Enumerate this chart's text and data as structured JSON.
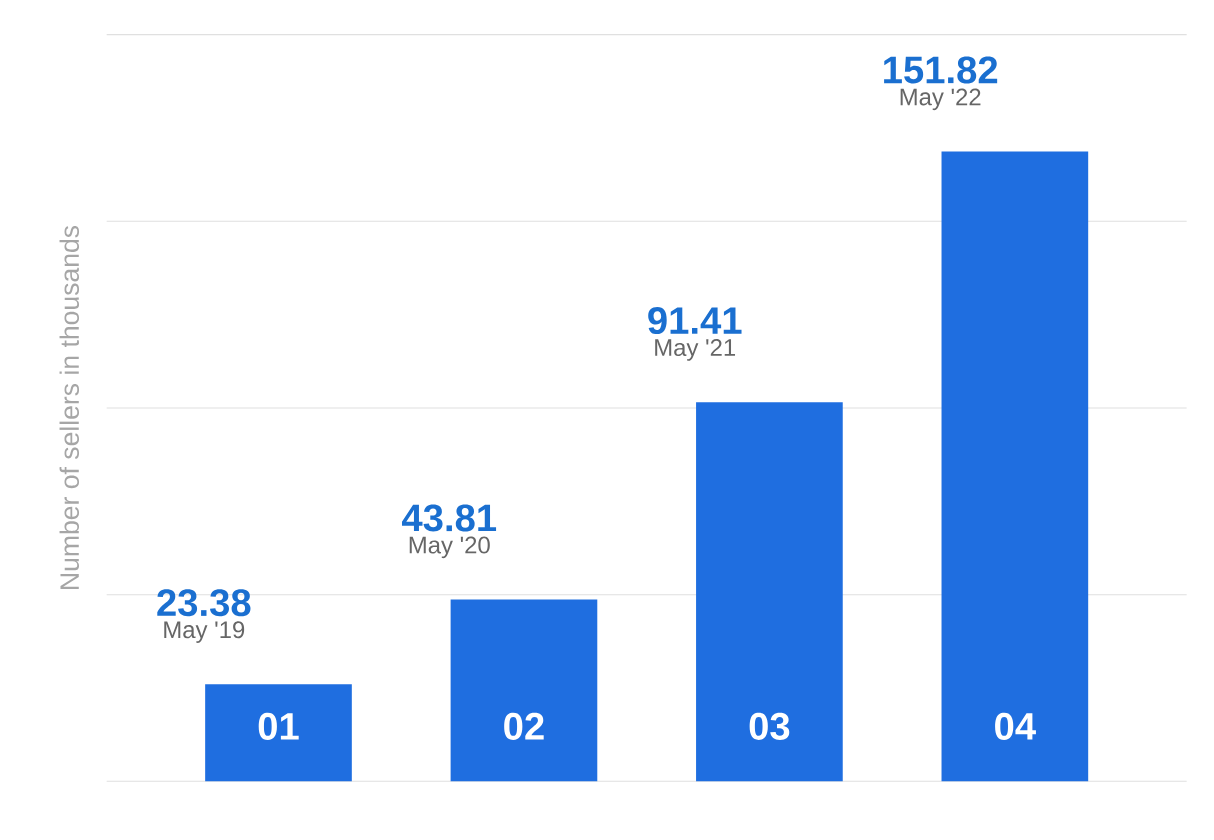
{
  "chart_data": {
    "type": "bar",
    "ylabel": "Number of sellers in thousands",
    "categories": [
      "01",
      "02",
      "03",
      "04"
    ],
    "values": [
      23.38,
      43.81,
      91.41,
      151.82
    ],
    "color": "#1f6ee0",
    "data_labels": true,
    "ylim": [
      0,
      180
    ],
    "yticks": [
      {
        "value": 0,
        "label": null
      },
      {
        "value": 45,
        "label": null
      },
      {
        "value": 90,
        "label": null
      },
      {
        "value": 135,
        "label": null
      },
      {
        "value": 180,
        "label": null
      }
    ],
    "grid": "y",
    "annotations": [
      {
        "text": "May '19",
        "x": "01",
        "y": 23.38
      },
      {
        "text": "May '20",
        "x": "02",
        "y": 43.81
      },
      {
        "text": "May '21",
        "x": "03",
        "y": 91.41
      },
      {
        "text": "May '22",
        "x": "04",
        "y": 151.82
      }
    ]
  }
}
